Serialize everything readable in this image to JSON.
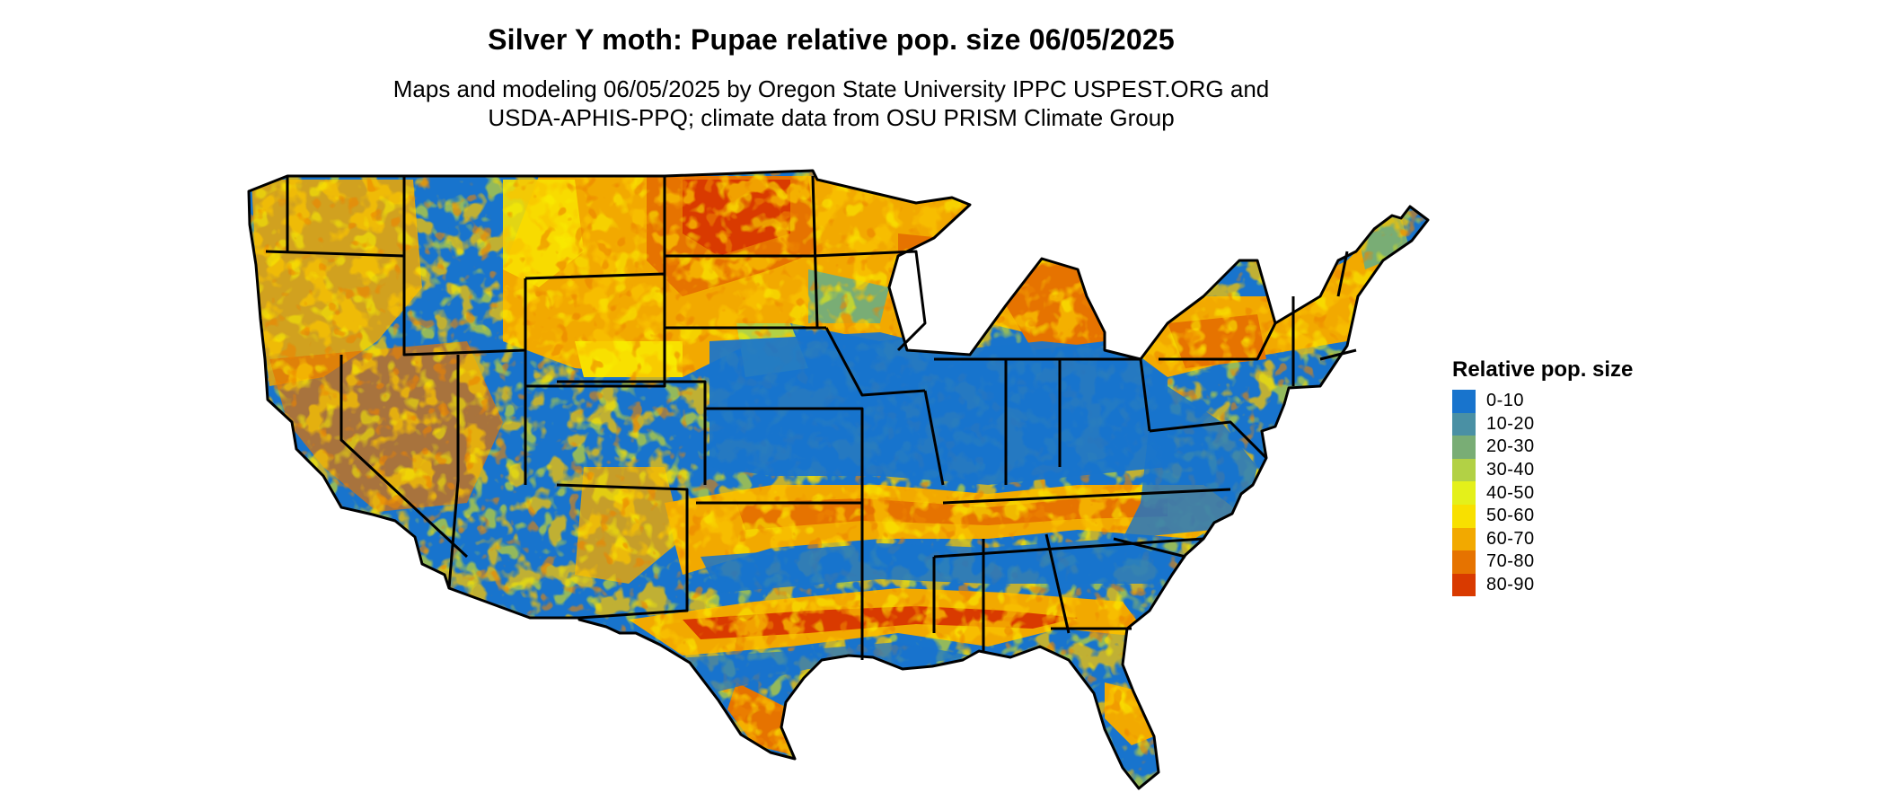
{
  "title": "Silver Y moth: Pupae relative pop. size 06/05/2025",
  "subtitle_lines": [
    "Maps and modeling 06/05/2025 by Oregon State University IPPC USPEST.ORG and",
    "USDA-APHIS-PPQ; climate data from OSU PRISM Climate Group"
  ],
  "legend": {
    "title": "Relative pop. size",
    "items": [
      {
        "label": "0-10",
        "color": "#1874cd"
      },
      {
        "label": "10-20",
        "color": "#4a90a4"
      },
      {
        "label": "20-30",
        "color": "#79ad75"
      },
      {
        "label": "30-40",
        "color": "#b2d145"
      },
      {
        "label": "40-50",
        "color": "#e4f01a"
      },
      {
        "label": "50-60",
        "color": "#f8e000"
      },
      {
        "label": "60-70",
        "color": "#f2a900"
      },
      {
        "label": "70-80",
        "color": "#e67300"
      },
      {
        "label": "80-90",
        "color": "#d93a00"
      }
    ]
  },
  "map": {
    "region": "Contiguous United States",
    "base_color": "#1874cd",
    "border_color": "#000000"
  }
}
